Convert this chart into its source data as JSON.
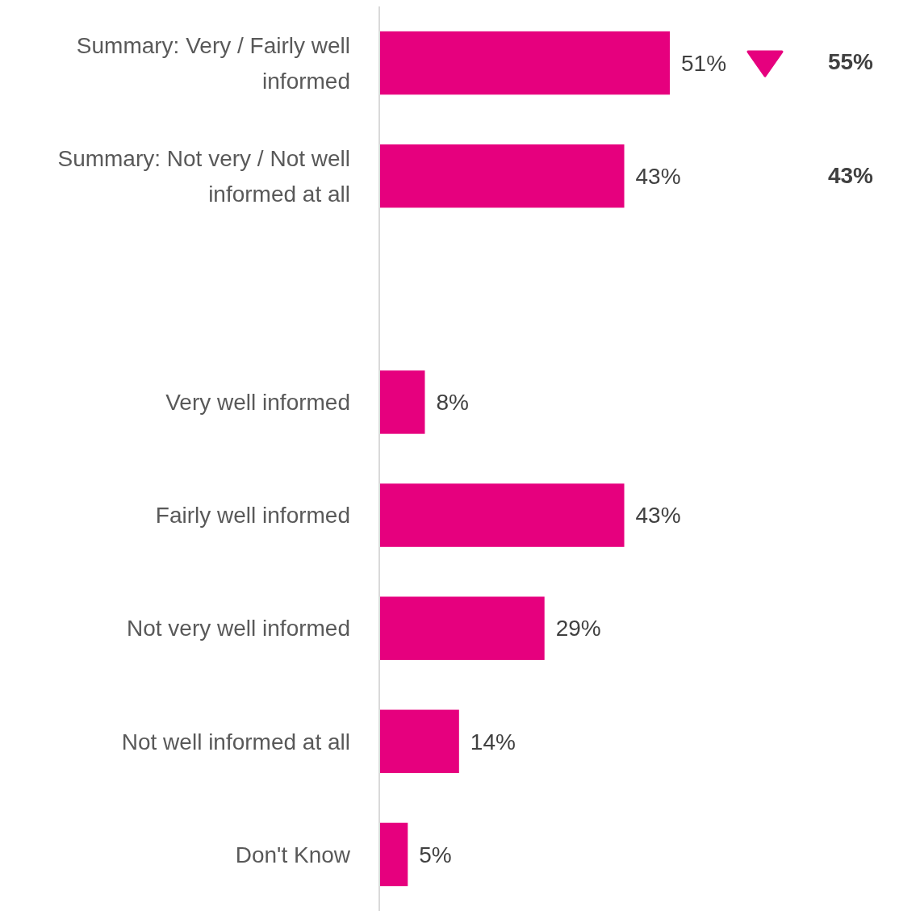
{
  "chart_data": {
    "type": "bar",
    "orientation": "horizontal",
    "tick_labels": "y",
    "categories": [
      "Summary: Very / Fairly well informed",
      "Summary: Not very / Not well informed at all",
      null,
      "Very well informed",
      "Fairly well informed",
      "Not very well informed",
      "Not well informed at all",
      "Don't Know"
    ],
    "series": [
      {
        "color": "#e6007e",
        "values": [
          51,
          43,
          null,
          8,
          43,
          29,
          14,
          5
        ],
        "value_labels": [
          "51%",
          "43%",
          null,
          "8%",
          "43%",
          "29%",
          "14%",
          "5%"
        ]
      }
    ],
    "annotations": [
      "55%",
      "43%"
    ]
  }
}
